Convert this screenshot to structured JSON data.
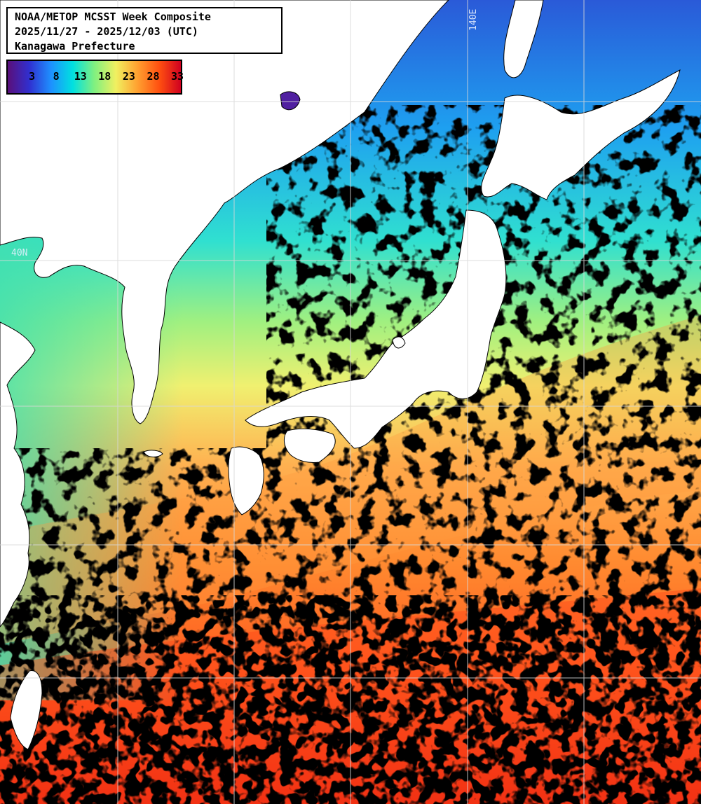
{
  "title": {
    "line1": "NOAA/METOP MCSST Week Composite",
    "line2": "2025/11/27 - 2025/12/03 (UTC)",
    "line3": "Kanagawa Prefecture"
  },
  "colorbar": {
    "ticks": [
      "3",
      "8",
      "13",
      "18",
      "23",
      "28",
      "33"
    ],
    "stops": [
      "#5a0f7a",
      "#3030d0",
      "#1e90ff",
      "#00e0e0",
      "#80f080",
      "#f0f060",
      "#ffa030",
      "#ff5010",
      "#d00020"
    ]
  },
  "grid_labels": {
    "lon": "140E",
    "lat": "40N"
  },
  "colors": {
    "land": "#ffffff",
    "cloud": "#000000",
    "grid": "#d8d8d8"
  }
}
